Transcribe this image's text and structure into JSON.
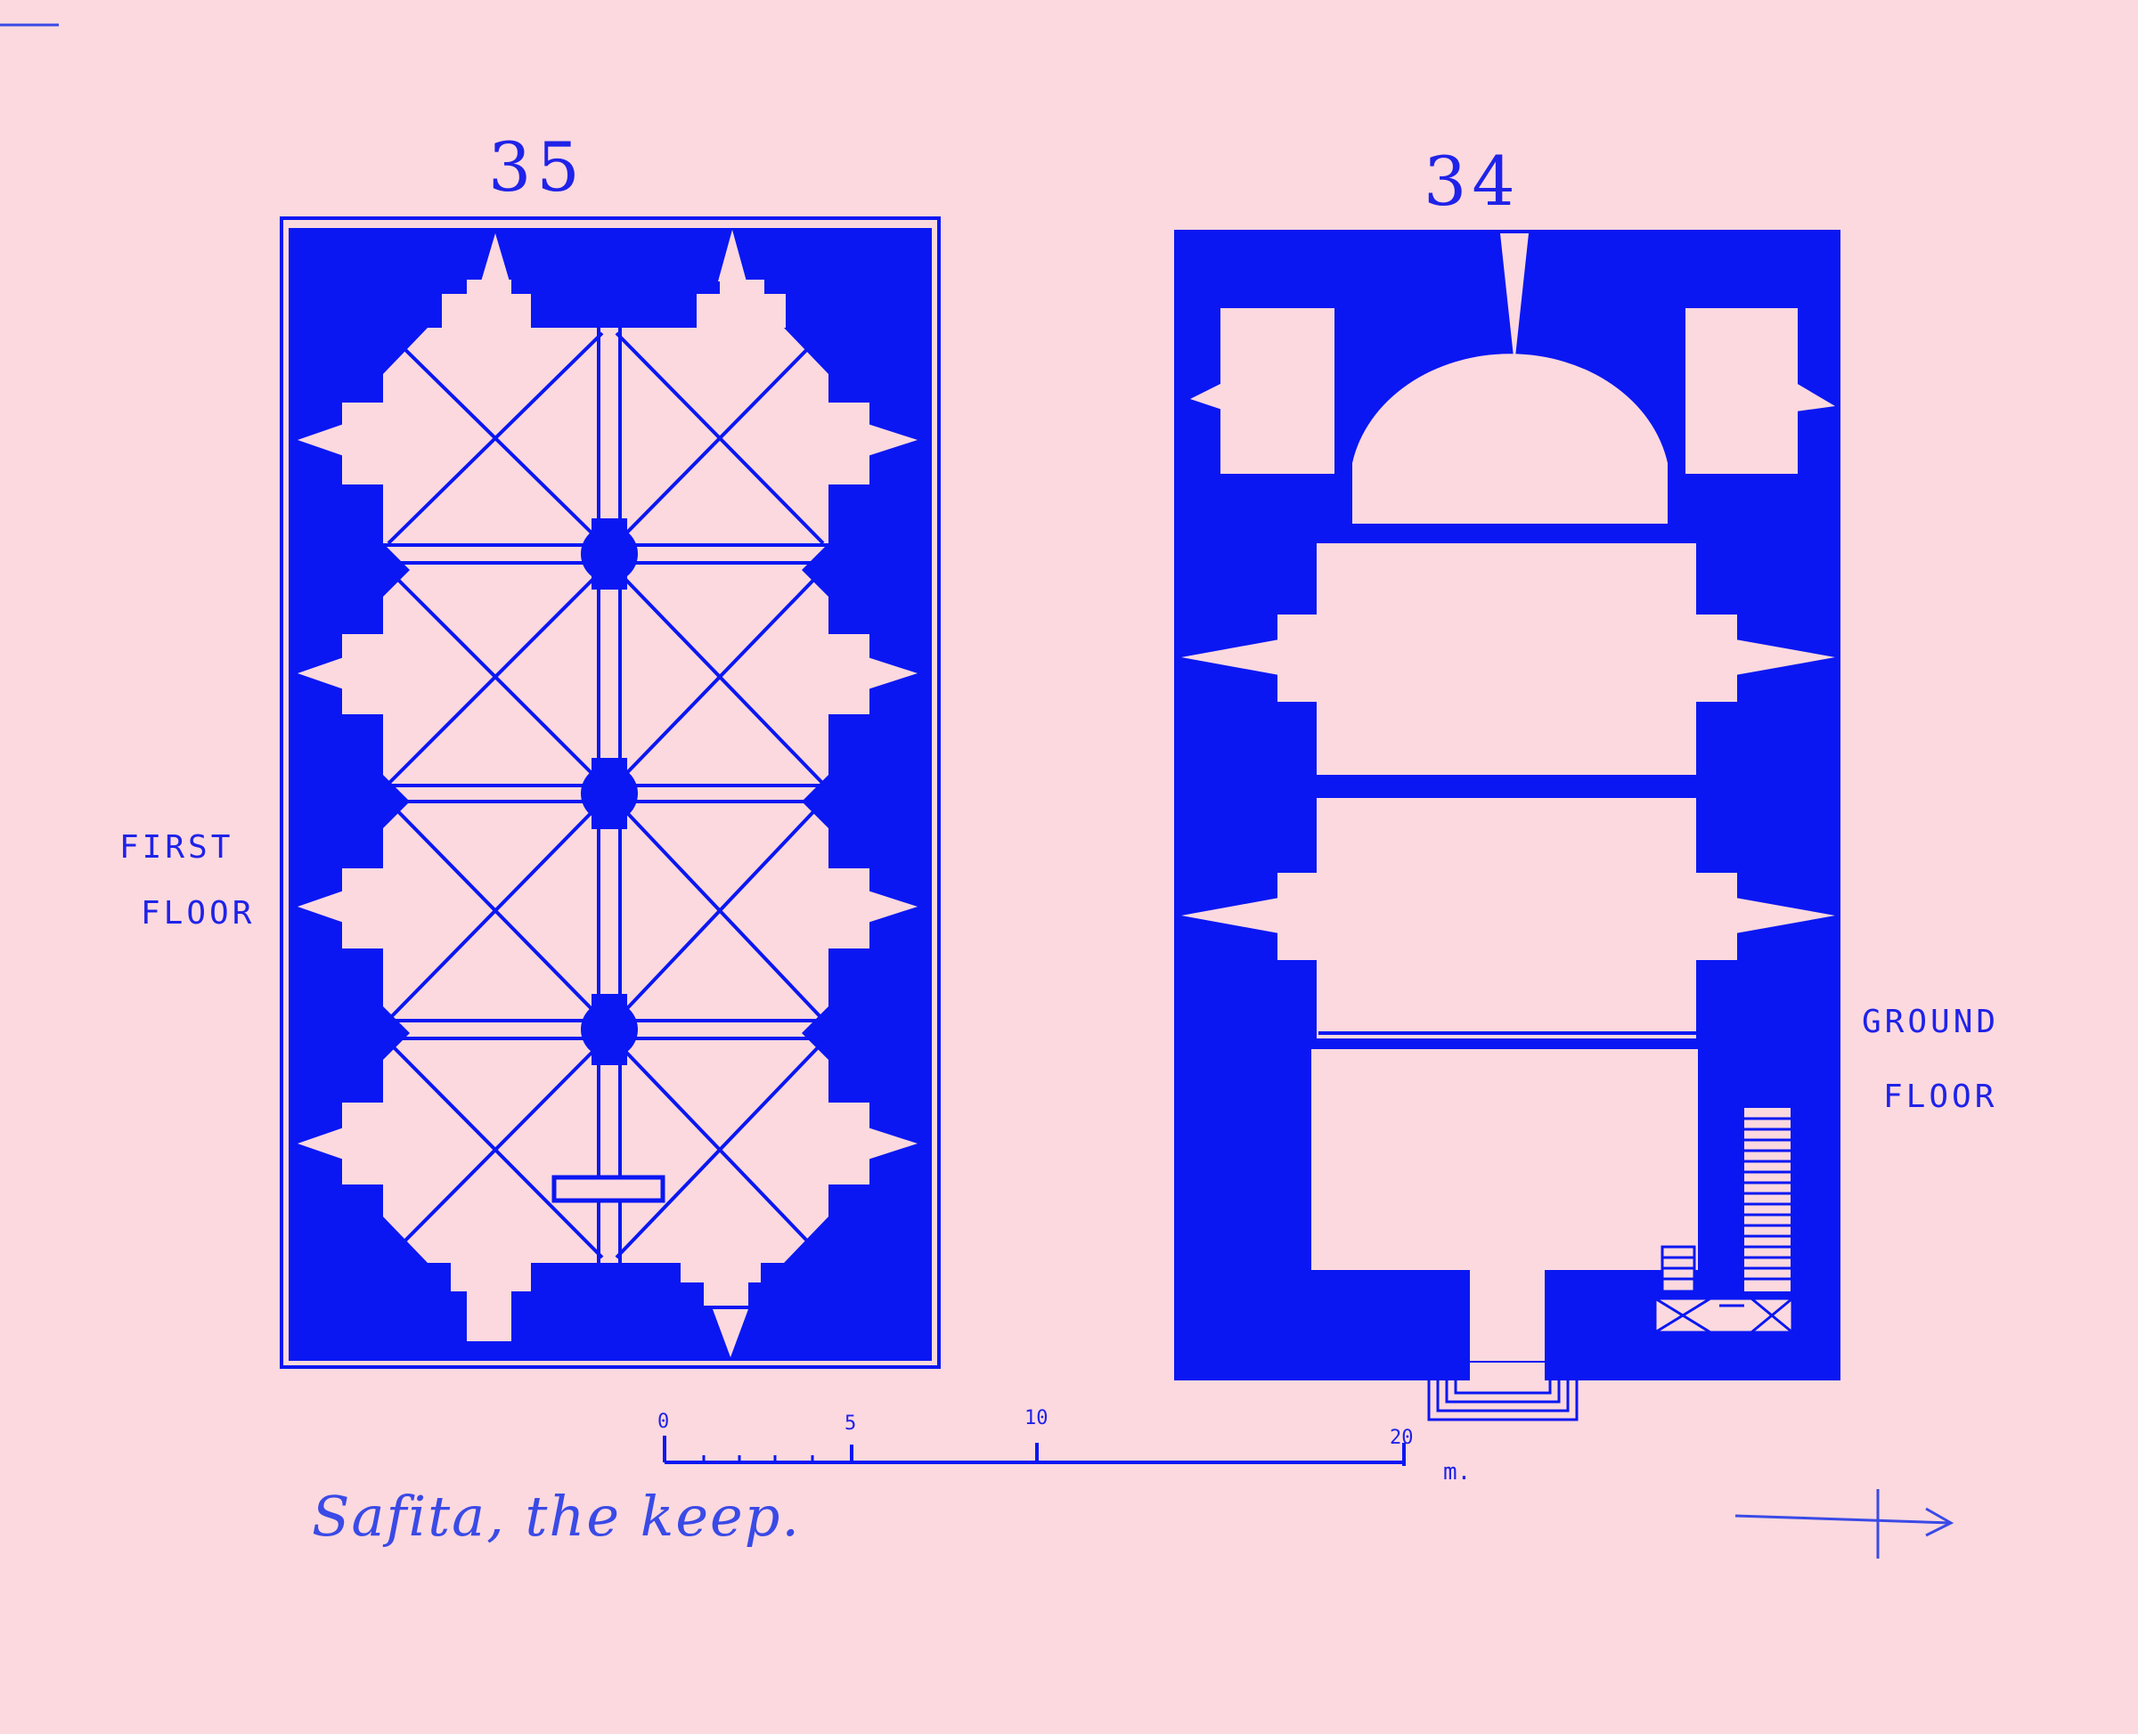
{
  "plans": {
    "first_floor": {
      "number": "35",
      "label_line1": "FIRST",
      "label_line2": "FLOOR"
    },
    "ground_floor": {
      "number": "34",
      "label_line1": "GROUND",
      "label_line2": "FLOOR"
    }
  },
  "scale_bar": {
    "ticks": [
      "0",
      "5",
      "10",
      "20"
    ],
    "unit": "m."
  },
  "caption": "Safita, the keep.",
  "colors": {
    "ink": "#0a17f2",
    "paper": "#fcd9df"
  }
}
